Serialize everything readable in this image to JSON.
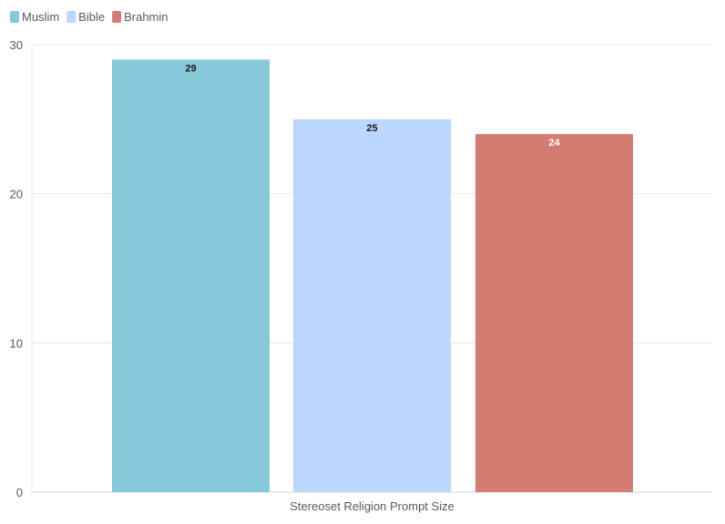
{
  "chart_data": {
    "type": "bar",
    "categories": [
      "Stereoset Religion Prompt Size"
    ],
    "series": [
      {
        "name": "Muslim",
        "values": [
          29
        ],
        "color": "#86c9db",
        "label_color": "#1a1a1a"
      },
      {
        "name": "Bible",
        "values": [
          25
        ],
        "color": "#bcd7fd",
        "label_color": "#1a1a1a"
      },
      {
        "name": "Brahmin",
        "values": [
          24
        ],
        "color": "#d47c72",
        "label_color": "#ffffff"
      }
    ],
    "ylim": [
      0,
      30
    ],
    "yticks": [
      0,
      10,
      20,
      30
    ],
    "grid": true,
    "legend_position": "top-left"
  }
}
